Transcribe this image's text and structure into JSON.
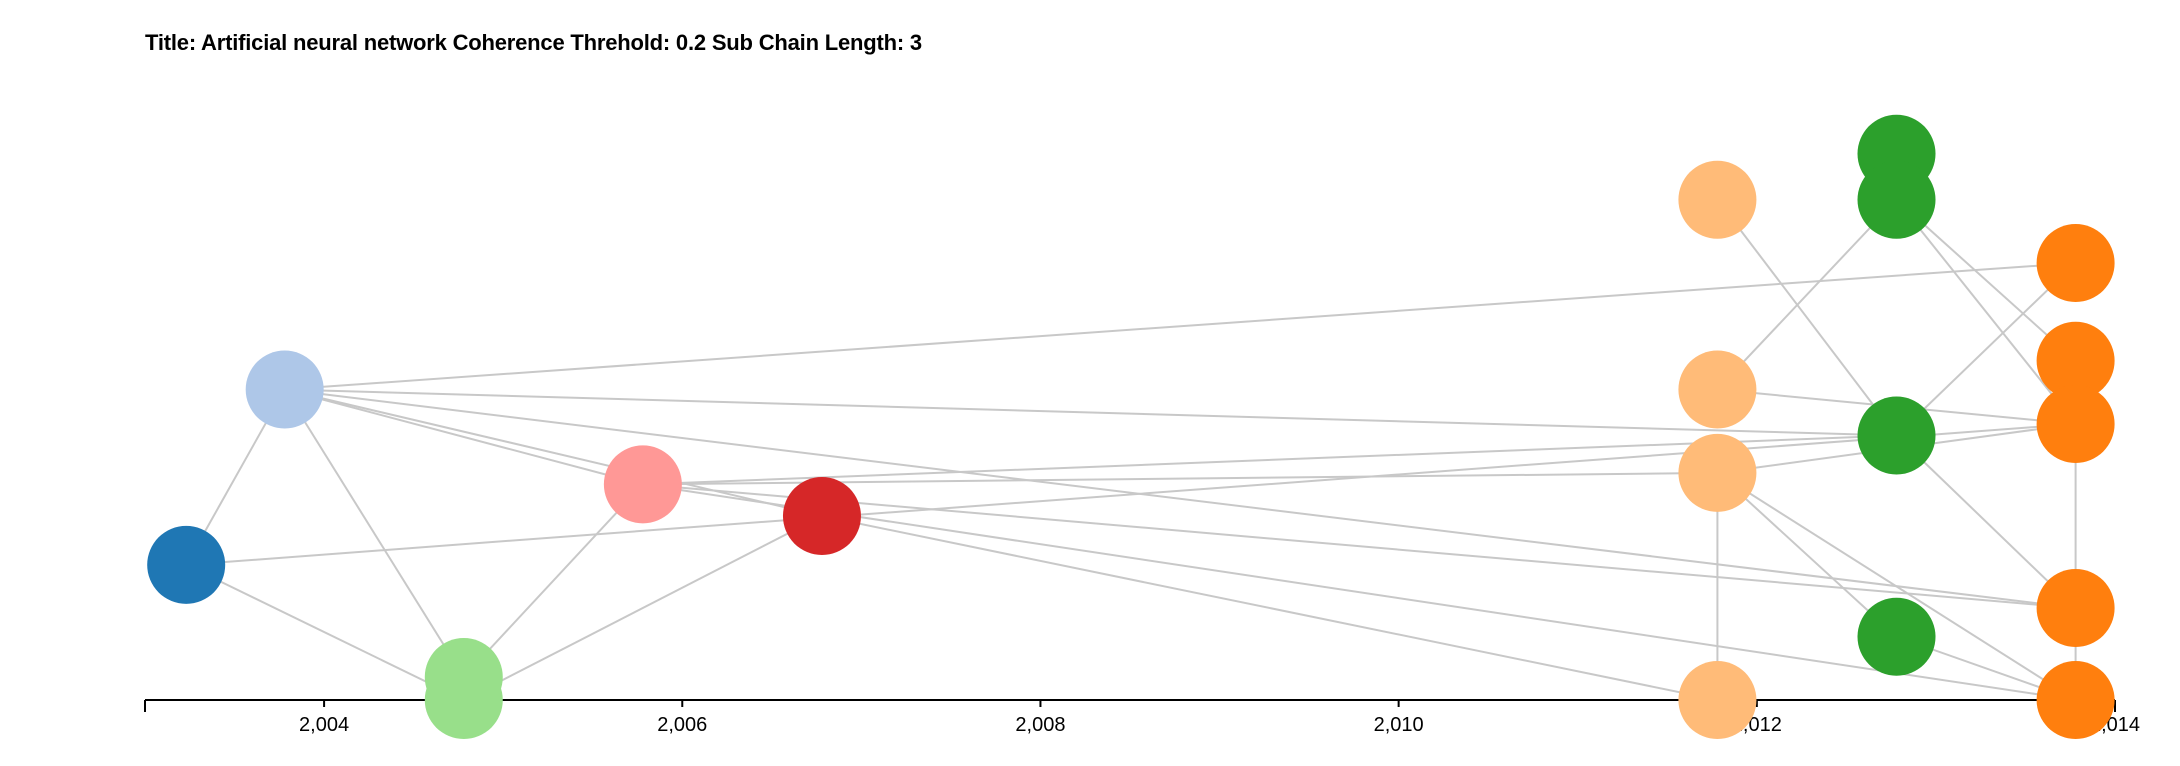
{
  "title": "Title: Artificial neural network Coherence Threhold: 0.2 Sub Chain Length: 3",
  "chart_data": {
    "type": "scatter",
    "xlim": [
      2003,
      2014
    ],
    "x_ticks": [
      2004,
      2006,
      2008,
      2010,
      2012,
      2014
    ],
    "x_tick_labels": [
      "2,004",
      "2,006",
      "2,008",
      "2,010",
      "2,012",
      "2,014"
    ],
    "nodes": [
      {
        "id": "n1",
        "x": 2003.23,
        "level": 0.235,
        "color": "#1f77b4"
      },
      {
        "id": "n2",
        "x": 2003.78,
        "level": 0.54,
        "color": "#aec7e8"
      },
      {
        "id": "n3",
        "x": 2004.78,
        "level": 0.04,
        "color": "#98df8a"
      },
      {
        "id": "n4",
        "x": 2004.78,
        "level": 0.0,
        "color": "#98df8a"
      },
      {
        "id": "n5",
        "x": 2005.78,
        "level": 0.375,
        "color": "#ff9896"
      },
      {
        "id": "n6",
        "x": 2006.78,
        "level": 0.32,
        "color": "#d62728"
      },
      {
        "id": "n7",
        "x": 2011.78,
        "level": 0.87,
        "color": "#ffbb78"
      },
      {
        "id": "n8",
        "x": 2011.78,
        "level": 0.54,
        "color": "#ffbb78"
      },
      {
        "id": "n9",
        "x": 2011.78,
        "level": 0.395,
        "color": "#ffbb78"
      },
      {
        "id": "n10",
        "x": 2011.78,
        "level": 0.0,
        "color": "#ffbb78"
      },
      {
        "id": "n11",
        "x": 2012.78,
        "level": 0.95,
        "color": "#2ca02c"
      },
      {
        "id": "n12",
        "x": 2012.78,
        "level": 0.87,
        "color": "#2ca02c"
      },
      {
        "id": "n13",
        "x": 2012.78,
        "level": 0.46,
        "color": "#2ca02c"
      },
      {
        "id": "n14",
        "x": 2012.78,
        "level": 0.11,
        "color": "#2ca02c"
      },
      {
        "id": "n15",
        "x": 2013.78,
        "level": 0.76,
        "color": "#ff7f0e"
      },
      {
        "id": "n16",
        "x": 2013.78,
        "level": 0.59,
        "color": "#ff7f0e"
      },
      {
        "id": "n17",
        "x": 2013.78,
        "level": 0.48,
        "color": "#ff7f0e"
      },
      {
        "id": "n18",
        "x": 2013.78,
        "level": 0.16,
        "color": "#ff7f0e"
      },
      {
        "id": "n19",
        "x": 2013.78,
        "level": 0.0,
        "color": "#ff7f0e"
      }
    ],
    "edges": [
      [
        "n1",
        "n2"
      ],
      [
        "n1",
        "n4"
      ],
      [
        "n1",
        "n17"
      ],
      [
        "n2",
        "n3"
      ],
      [
        "n2",
        "n15"
      ],
      [
        "n2",
        "n13"
      ],
      [
        "n2",
        "n5"
      ],
      [
        "n2",
        "n6"
      ],
      [
        "n2",
        "n18"
      ],
      [
        "n3",
        "n5"
      ],
      [
        "n4",
        "n6"
      ],
      [
        "n5",
        "n9"
      ],
      [
        "n5",
        "n13"
      ],
      [
        "n5",
        "n18"
      ],
      [
        "n5",
        "n19"
      ],
      [
        "n6",
        "n10"
      ],
      [
        "n7",
        "n13"
      ],
      [
        "n8",
        "n12"
      ],
      [
        "n8",
        "n17"
      ],
      [
        "n9",
        "n17"
      ],
      [
        "n9",
        "n14"
      ],
      [
        "n9",
        "n10"
      ],
      [
        "n9",
        "n19"
      ],
      [
        "n12",
        "n16"
      ],
      [
        "n12",
        "n17"
      ],
      [
        "n13",
        "n15"
      ],
      [
        "n13",
        "n18"
      ],
      [
        "n14",
        "n19"
      ],
      [
        "n17",
        "n19"
      ]
    ]
  }
}
